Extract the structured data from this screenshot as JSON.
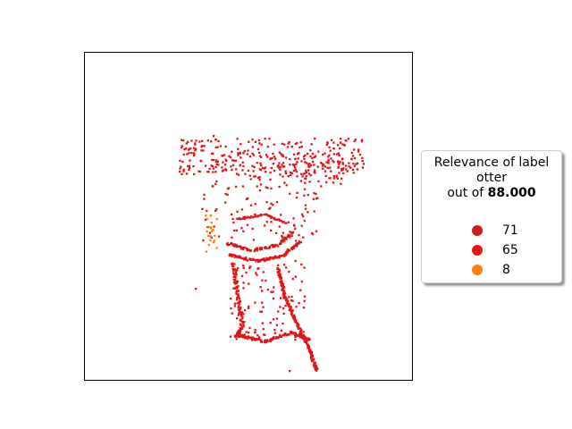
{
  "legend": {
    "title_line1": "Relevance of label",
    "title_line2": "otter",
    "title_line3_prefix": "out of ",
    "title_line3_value": "88.000"
  },
  "chart_data": {
    "type": "heatmap",
    "title": "",
    "xlabel": "",
    "ylabel": "",
    "grid": false,
    "legend_placement": "right",
    "series": [
      {
        "name": "71",
        "color": "#d11b1b"
      },
      {
        "name": "65",
        "color": "#ee1111"
      },
      {
        "name": "8",
        "color": "#ff7f0e"
      }
    ]
  }
}
